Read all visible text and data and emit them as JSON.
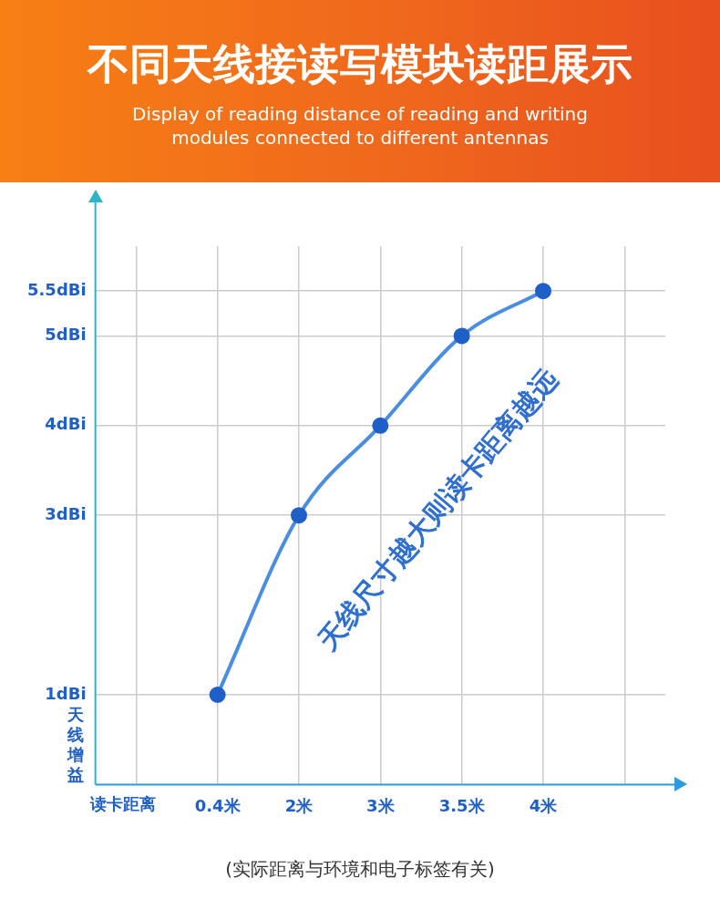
{
  "chart_data": {
    "type": "line",
    "title": "不同天线接读写模块读距展示",
    "subtitle": "Display of reading distance of reading and writing modules connected to different antennas",
    "xlabel": "读卡距离",
    "ylabel": "天线增益",
    "categories": [
      null,
      "0.4米",
      "2米",
      "3米",
      "3.5米",
      "4米",
      null
    ],
    "series": [
      {
        "color": "#4a8ee0",
        "values": [
          null,
          1,
          3,
          4,
          5,
          5.5,
          null
        ]
      }
    ],
    "ylim": [
      0,
      6
    ],
    "yticks": [
      {
        "value": 1,
        "label": "1dBi"
      },
      {
        "value": 3,
        "label": "3dBi"
      },
      {
        "value": 4,
        "label": "4dBi"
      },
      {
        "value": 5,
        "label": "5dBi"
      },
      {
        "value": 5.5,
        "label": "5.5dBi"
      }
    ],
    "grid": true,
    "marker": "circle",
    "line_style": "solid",
    "legend": false,
    "annotations": [
      "天线尺寸越大则读卡距离越远",
      "(实际距离与环境和电子标签有关)"
    ]
  }
}
